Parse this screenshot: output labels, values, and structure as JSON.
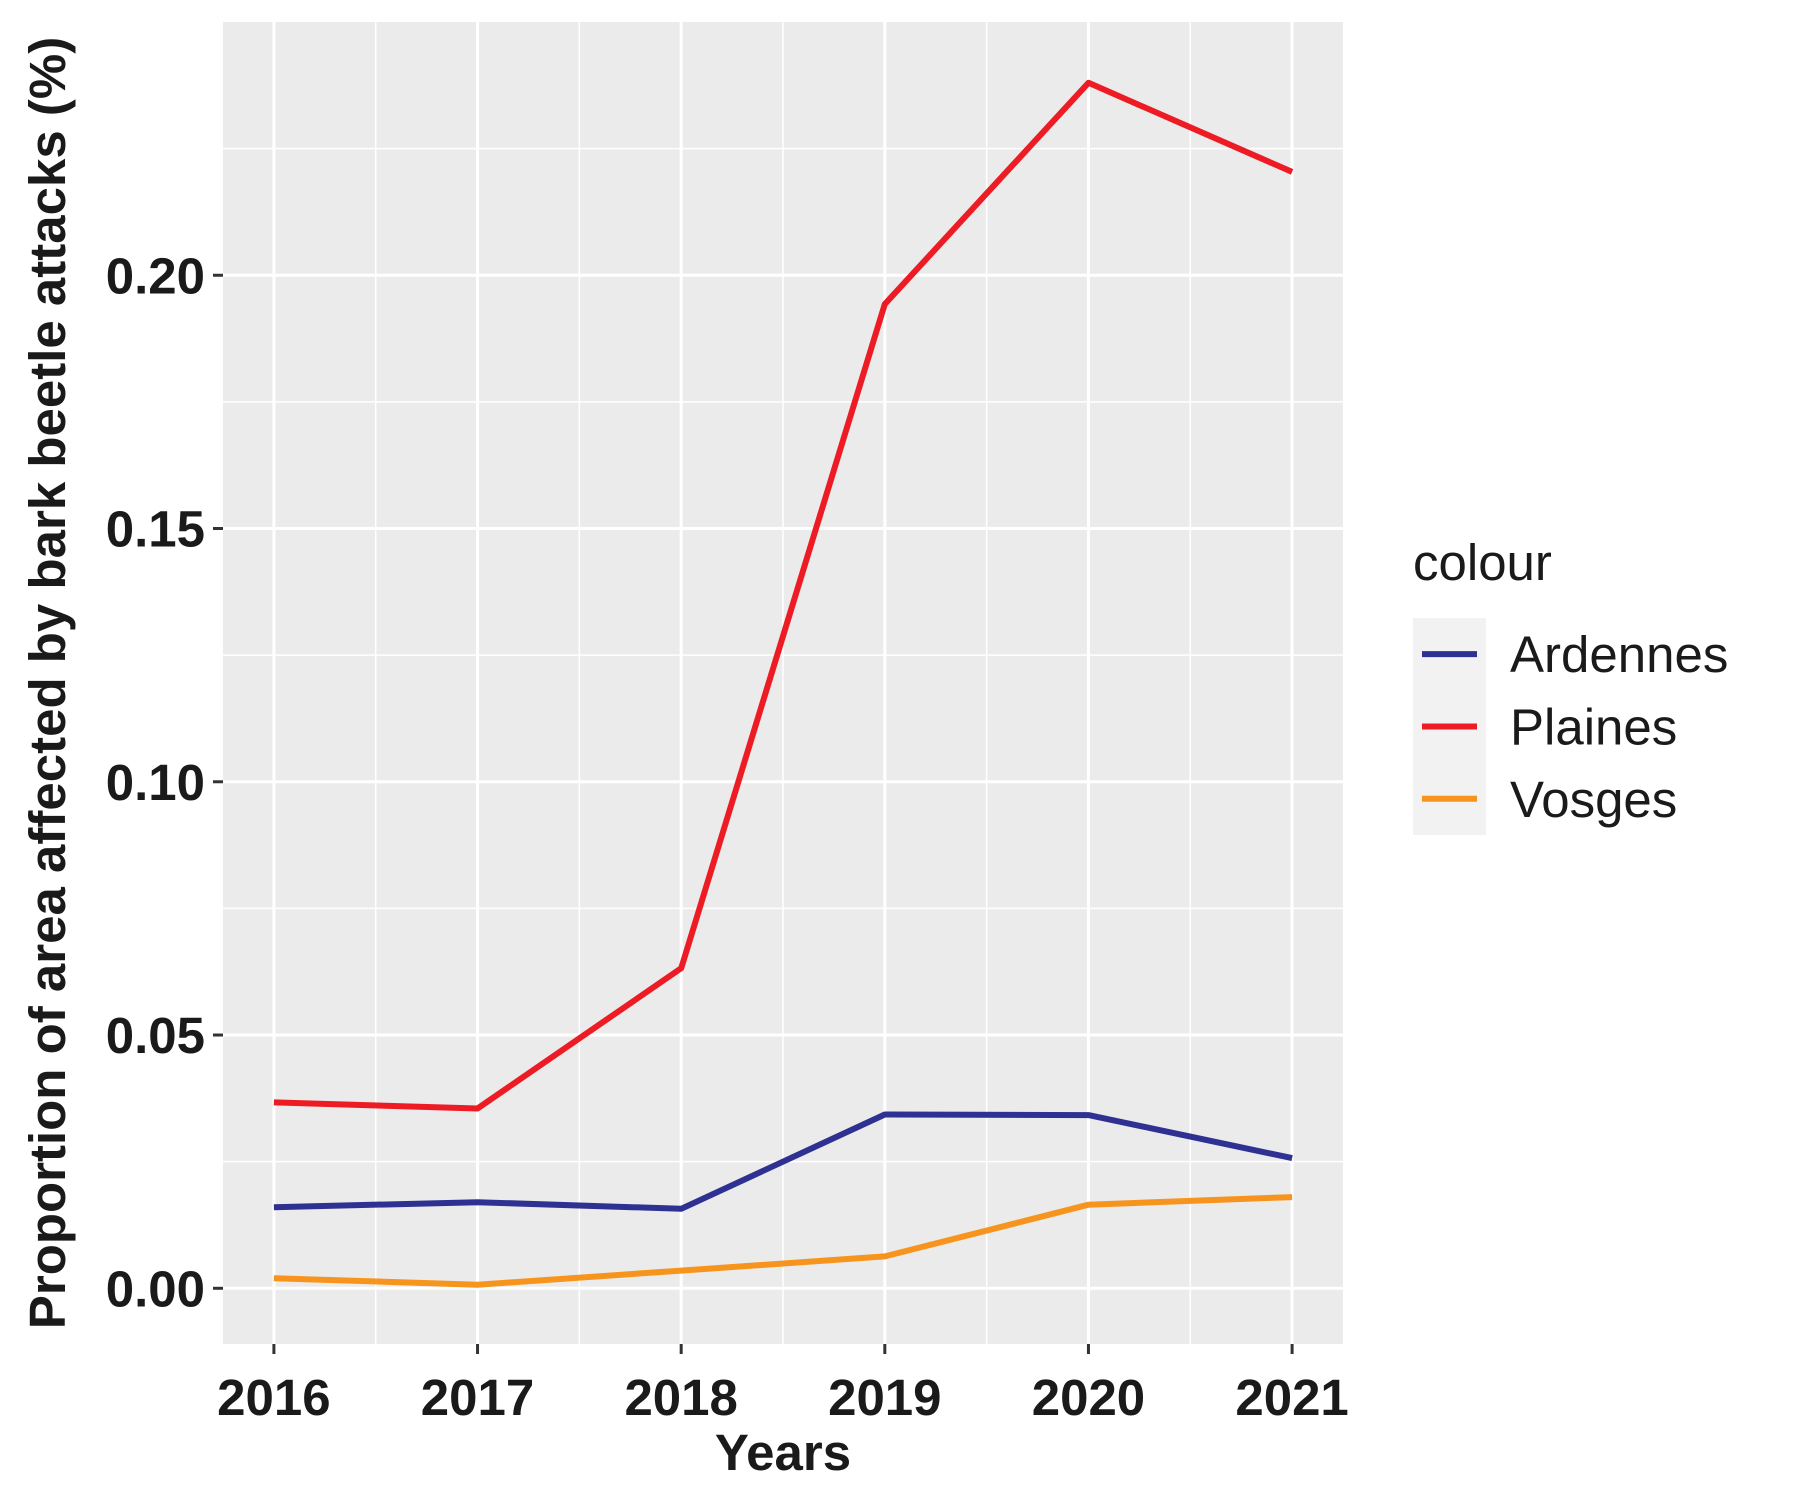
{
  "chart_data": {
    "type": "line",
    "title": "",
    "xlabel": "Years",
    "ylabel": "Proportion of area affected by bark beetle attacks (%)",
    "x": [
      2016,
      2017,
      2018,
      2019,
      2020,
      2021
    ],
    "x_tick_labels": [
      "2016",
      "2017",
      "2018",
      "2019",
      "2020",
      "2021"
    ],
    "y_ticks": [
      0.0,
      0.05,
      0.1,
      0.15,
      0.2
    ],
    "y_tick_labels": [
      "0.00",
      "0.05",
      "0.10",
      "0.15",
      "0.20"
    ],
    "xlim": [
      2015.75,
      2021.25
    ],
    "ylim": [
      -0.011,
      0.25
    ],
    "grid": true,
    "legend_title": "colour",
    "legend_position": "right",
    "series": [
      {
        "name": "Ardennes",
        "color": "#2E3192",
        "values": [
          0.016,
          0.017,
          0.0157,
          0.0343,
          0.0342,
          0.0257
        ]
      },
      {
        "name": "Plaines",
        "color": "#ED1C24",
        "values": [
          0.0367,
          0.0355,
          0.0632,
          0.1943,
          0.238,
          0.2204
        ]
      },
      {
        "name": "Vosges",
        "color": "#F7941D",
        "values": [
          0.002,
          0.0007,
          0.0035,
          0.0063,
          0.0165,
          0.018
        ]
      }
    ]
  }
}
